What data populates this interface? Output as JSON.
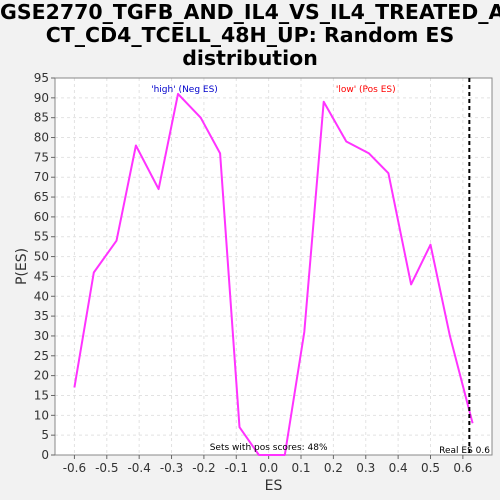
{
  "chart_data": {
    "type": "line",
    "title_line1": "GSE2770_TGFB_AND_IL4_VS_IL4_TREATED_A",
    "title_line2": "CT_CD4_TCELL_48H_UP: Random ES",
    "title_line3": "distribution",
    "xlabel": "ES",
    "ylabel": "P(ES)",
    "xlim": [
      -0.66,
      0.69
    ],
    "ylim": [
      0,
      95
    ],
    "xticks": [
      -0.6,
      -0.5,
      -0.4,
      -0.3,
      -0.2,
      -0.1,
      0.0,
      0.1,
      0.2,
      0.3,
      0.4,
      0.5,
      0.6
    ],
    "xtick_labels": [
      "-0.6",
      "-0.5",
      "-0.4",
      "-0.3",
      "-0.2",
      "-0.1",
      "0.0",
      "0.1",
      "0.2",
      "0.3",
      "0.4",
      "0.5",
      "0.6"
    ],
    "yticks": [
      0,
      5,
      10,
      15,
      20,
      25,
      30,
      35,
      40,
      45,
      50,
      55,
      60,
      65,
      70,
      75,
      80,
      85,
      90,
      95
    ],
    "grid": true,
    "line_color": "#ff33ff",
    "x": [
      -0.6,
      -0.54,
      -0.47,
      -0.41,
      -0.34,
      -0.28,
      -0.21,
      -0.15,
      -0.09,
      -0.03,
      0.05,
      0.11,
      0.17,
      0.24,
      0.31,
      0.37,
      0.44,
      0.5,
      0.56,
      0.63
    ],
    "y": [
      17,
      46,
      54,
      78,
      67,
      91,
      85,
      76,
      7,
      0,
      0,
      31,
      89,
      79,
      76,
      71,
      43,
      53,
      30,
      8
    ],
    "real_es": 0.62,
    "annotations": {
      "high_label": "'high' (Neg ES)",
      "high_color": "#0000cc",
      "low_label": "'low' (Pos ES)",
      "low_color": "#ff0000",
      "pos_scores_label": "Sets with pos scores: 48%",
      "real_es_label": "Real ES 0.6"
    }
  }
}
